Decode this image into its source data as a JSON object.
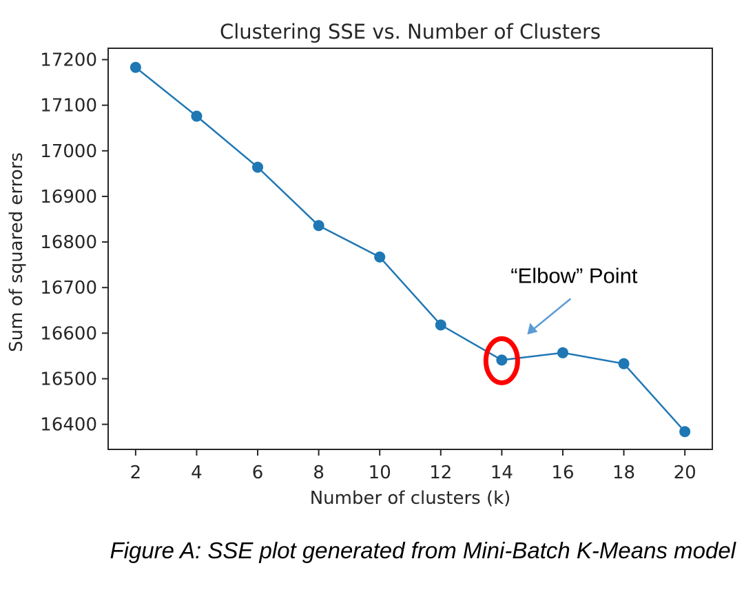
{
  "chart_data": {
    "type": "line",
    "title": "Clustering SSE vs. Number of Clusters",
    "xlabel": "Number of clusters (k)",
    "ylabel": "Sum of squared errors",
    "x": [
      2,
      4,
      6,
      8,
      10,
      12,
      14,
      16,
      18,
      20
    ],
    "series": [
      {
        "name": "SSE",
        "values": [
          17183,
          17076,
          16964,
          16836,
          16767,
          16618,
          16541,
          16557,
          16533,
          16384
        ]
      }
    ],
    "xlim": [
      1.1,
      20.9
    ],
    "ylim": [
      16345,
      17225
    ],
    "xticks": [
      2,
      4,
      6,
      8,
      10,
      12,
      14,
      16,
      18,
      20
    ],
    "yticks": [
      16400,
      16500,
      16600,
      16700,
      16800,
      16900,
      17000,
      17100,
      17200
    ],
    "grid": false,
    "marker": "circle",
    "line_color": "#1f77b4",
    "annotation": {
      "text": "“Elbow” Point",
      "target_x": 14,
      "target_y": 16541,
      "circle_color": "#ff0000",
      "arrow_color": "#5b9bd5"
    }
  },
  "caption": "Figure A: SSE plot generated from Mini-Batch K-Means model"
}
